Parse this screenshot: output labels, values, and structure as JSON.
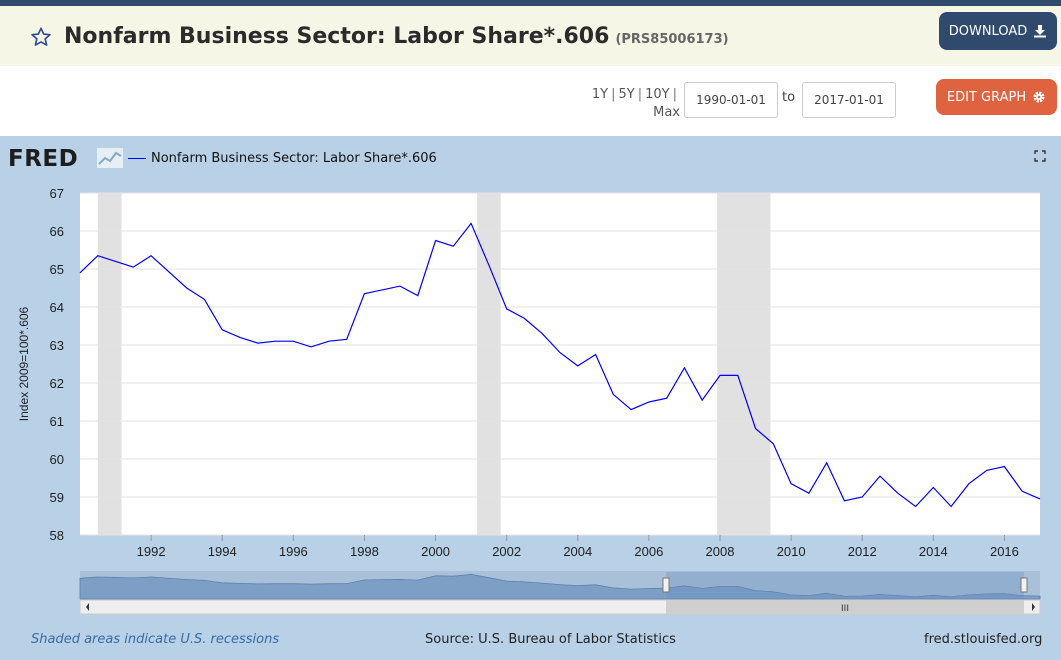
{
  "header": {
    "title": "Nonfarm Business Sector: Labor Share*.606",
    "series_code": "(PRS85006173)",
    "download_label": "DOWNLOAD"
  },
  "controls": {
    "range_1y": "1Y",
    "range_5y": "5Y",
    "range_10y": "10Y",
    "range_max": "Max",
    "start_date": "1990-01-01",
    "to_label": "to",
    "end_date": "2017-01-01",
    "edit_label": "EDIT GRAPH"
  },
  "chart_header": {
    "logo": "FRED",
    "legend_label": "Nonfarm Business Sector: Labor Share*.606"
  },
  "colors": {
    "series": "#0000ff",
    "recession": "#e1e1e1",
    "panel_bg": "#b8d1e7",
    "download_bg": "#2f4a6d",
    "edit_bg": "#e0633f"
  },
  "footer": {
    "recession_note": "Shaded areas indicate U.S. recessions",
    "source": "Source: U.S. Bureau of Labor Statistics",
    "site": "fred.stlouisfed.org"
  },
  "chart_data": {
    "type": "line",
    "title": "",
    "xlabel": "",
    "ylabel": "Index 2009=100*.606",
    "xlim": [
      1990.0,
      2017.0
    ],
    "ylim": [
      58,
      67
    ],
    "yticks": [
      58,
      59,
      60,
      61,
      62,
      63,
      64,
      65,
      66,
      67
    ],
    "xticks": [
      1992,
      1994,
      1996,
      1998,
      2000,
      2002,
      2004,
      2006,
      2008,
      2010,
      2012,
      2014,
      2016
    ],
    "grid": true,
    "legend_position": "top-left",
    "recessions": [
      [
        1990.5,
        1991.17
      ],
      [
        2001.17,
        2001.83
      ],
      [
        2007.92,
        2009.42
      ]
    ],
    "series": [
      {
        "name": "Nonfarm Business Sector: Labor Share*.606",
        "x": [
          1990.0,
          1990.5,
          1991.0,
          1991.5,
          1992.0,
          1993.0,
          1993.5,
          1994.0,
          1994.5,
          1995.0,
          1995.5,
          1996.0,
          1996.5,
          1997.0,
          1997.5,
          1998.0,
          1998.5,
          1999.0,
          1999.5,
          2000.0,
          2000.5,
          2001.0,
          2001.5,
          2002.0,
          2002.5,
          2003.0,
          2003.5,
          2004.0,
          2004.5,
          2005.0,
          2005.5,
          2006.0,
          2006.5,
          2007.0,
          2007.5,
          2008.0,
          2008.5,
          2009.0,
          2009.5,
          2010.0,
          2010.5,
          2011.0,
          2011.5,
          2012.0,
          2012.5,
          2013.0,
          2013.5,
          2014.0,
          2014.5,
          2015.0,
          2015.5,
          2016.0,
          2016.5,
          2017.0
        ],
        "values": [
          64.9,
          65.35,
          65.2,
          65.05,
          65.35,
          64.5,
          64.2,
          63.4,
          63.2,
          63.05,
          63.1,
          63.1,
          62.95,
          63.1,
          63.15,
          64.35,
          64.45,
          64.55,
          64.3,
          65.75,
          65.6,
          66.2,
          65.1,
          63.95,
          63.7,
          63.3,
          62.8,
          62.45,
          62.75,
          61.7,
          61.3,
          61.5,
          61.6,
          62.4,
          61.55,
          62.2,
          62.2,
          60.8,
          60.4,
          59.35,
          59.1,
          59.9,
          58.9,
          59.0,
          59.55,
          59.1,
          58.75,
          59.25,
          58.75,
          59.35,
          59.7,
          59.8,
          59.15,
          58.95
        ]
      }
    ]
  }
}
